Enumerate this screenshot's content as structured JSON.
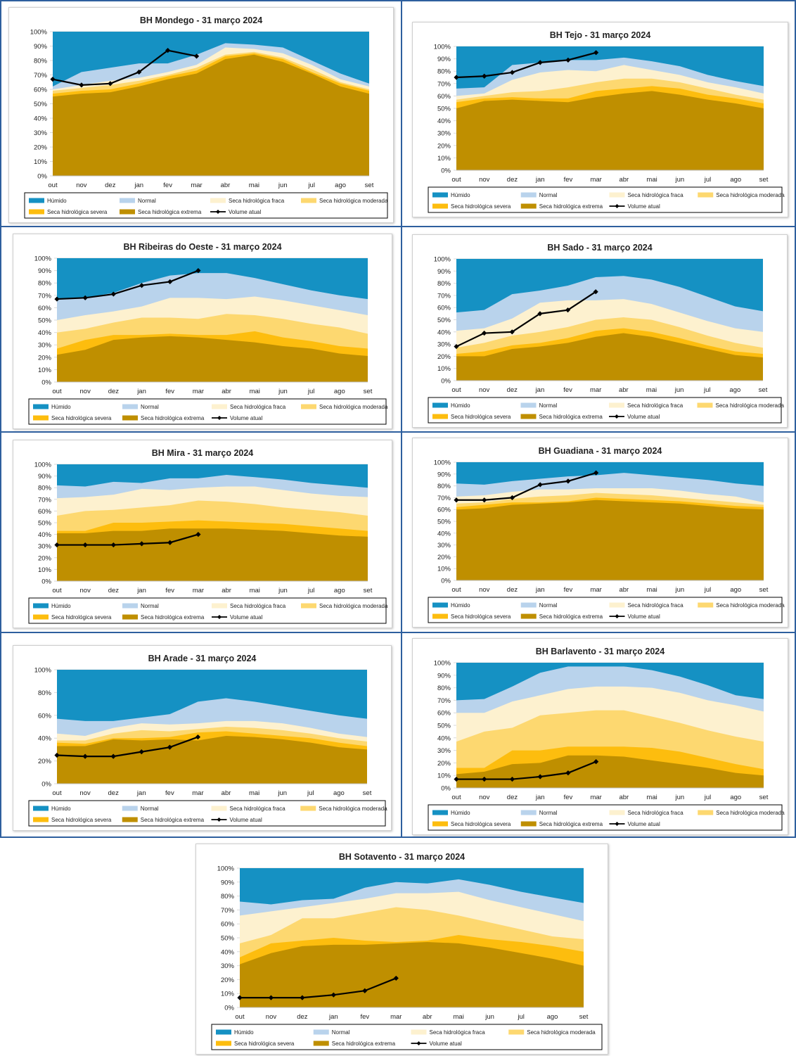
{
  "colors": {
    "humido": "#1591c3",
    "normal": "#b9d3ec",
    "fraca": "#fdf1cf",
    "moderada": "#fdd870",
    "severa": "#fdbd0e",
    "extrema": "#bf8f00",
    "volume": "#000000"
  },
  "legend": [
    "Húmido",
    "Normal",
    "Seca hidrológica fraca",
    "Seca hidrológica moderada",
    "Seca hidrológica severa",
    "Seca hidrológica extrema",
    "Volume atual"
  ],
  "chart_data": [
    {
      "type": "area",
      "title": "BH Mondego - 31 março 2024",
      "categories": [
        "out",
        "nov",
        "dez",
        "jan",
        "fev",
        "mar",
        "abr",
        "mai",
        "jun",
        "jul",
        "ago",
        "set"
      ],
      "yticks": [
        "0%",
        "10%",
        "20%",
        "30%",
        "40%",
        "50%",
        "60%",
        "70%",
        "80%",
        "90%",
        "100%"
      ],
      "ylim": [
        0,
        100
      ],
      "bands": {
        "extrema": [
          55,
          57,
          58,
          62,
          67,
          71,
          81,
          84,
          79,
          71,
          62,
          57
        ],
        "severa": [
          57,
          59,
          60,
          64,
          69,
          73,
          83,
          85,
          81,
          72,
          64,
          59
        ],
        "moderada": [
          59,
          61,
          63,
          66,
          70,
          75,
          84,
          86,
          82,
          74,
          65,
          60
        ],
        "fraca": [
          60,
          63,
          66,
          68,
          72,
          77,
          89,
          88,
          85,
          77,
          67,
          62
        ],
        "normal": [
          62,
          72,
          75,
          78,
          78,
          84,
          92,
          91,
          89,
          80,
          71,
          64
        ]
      },
      "volume": [
        67,
        63,
        64,
        72,
        87,
        83,
        null,
        null,
        null,
        null,
        null,
        null
      ]
    },
    {
      "type": "area",
      "title": "BH Tejo - 31 março 2024",
      "categories": [
        "out",
        "nov",
        "dez",
        "jan",
        "fev",
        "mar",
        "abr",
        "mai",
        "jun",
        "jul",
        "ago",
        "set"
      ],
      "yticks": [
        "0%",
        "10%",
        "20%",
        "30%",
        "40%",
        "50%",
        "60%",
        "70%",
        "80%",
        "90%",
        "100%"
      ],
      "ylim": [
        0,
        100
      ],
      "bands": {
        "extrema": [
          50,
          56,
          57,
          56,
          55,
          59,
          62,
          64,
          61,
          57,
          54,
          50
        ],
        "severa": [
          55,
          58,
          59,
          58,
          58,
          64,
          66,
          68,
          66,
          61,
          58,
          54
        ],
        "moderada": [
          57,
          60,
          63,
          64,
          67,
          71,
          74,
          74,
          71,
          66,
          61,
          57
        ],
        "fraca": [
          60,
          62,
          73,
          79,
          81,
          80,
          85,
          81,
          77,
          71,
          67,
          62
        ],
        "normal": [
          66,
          67,
          85,
          87,
          89,
          89,
          91,
          88,
          84,
          77,
          72,
          68
        ]
      },
      "volume": [
        75,
        76,
        79,
        87,
        89,
        95,
        null,
        null,
        null,
        null,
        null,
        null
      ]
    },
    {
      "type": "area",
      "title": "BH Ribeiras do Oeste - 31 março 2024",
      "categories": [
        "out",
        "nov",
        "dez",
        "jan",
        "fev",
        "mar",
        "abr",
        "mai",
        "jun",
        "jul",
        "ago",
        "set"
      ],
      "yticks": [
        "0%",
        "10%",
        "20%",
        "30%",
        "40%",
        "50%",
        "60%",
        "70%",
        "80%",
        "90%",
        "100%"
      ],
      "ylim": [
        0,
        100
      ],
      "bands": {
        "extrema": [
          22,
          26,
          34,
          36,
          37,
          36,
          34,
          32,
          29,
          27,
          23,
          21
        ],
        "severa": [
          27,
          34,
          38,
          38,
          39,
          38,
          38,
          41,
          36,
          33,
          29,
          27
        ],
        "moderada": [
          40,
          43,
          48,
          52,
          52,
          51,
          55,
          54,
          51,
          47,
          44,
          39
        ],
        "fraca": [
          50,
          54,
          57,
          61,
          68,
          68,
          67,
          69,
          66,
          62,
          58,
          54
        ],
        "normal": [
          67,
          68,
          72,
          80,
          86,
          88,
          88,
          84,
          79,
          74,
          70,
          67
        ]
      },
      "volume": [
        67,
        68,
        71,
        78,
        81,
        90,
        null,
        null,
        null,
        null,
        null,
        null
      ]
    },
    {
      "type": "area",
      "title": "BH Sado - 31 março 2024",
      "categories": [
        "out",
        "nov",
        "dez",
        "jan",
        "fev",
        "mar",
        "abr",
        "mai",
        "jun",
        "jul",
        "ago",
        "set"
      ],
      "yticks": [
        "0%",
        "10%",
        "20%",
        "30%",
        "40%",
        "50%",
        "60%",
        "70%",
        "80%",
        "90%",
        "100%"
      ],
      "ylim": [
        0,
        100
      ],
      "bands": {
        "extrema": [
          20,
          20,
          26,
          28,
          31,
          36,
          39,
          36,
          31,
          26,
          21,
          19
        ],
        "severa": [
          22,
          24,
          29,
          31,
          35,
          41,
          43,
          40,
          35,
          29,
          24,
          22
        ],
        "moderada": [
          27,
          31,
          37,
          40,
          44,
          50,
          52,
          50,
          44,
          37,
          31,
          27
        ],
        "fraca": [
          41,
          43,
          51,
          64,
          66,
          66,
          67,
          63,
          56,
          49,
          43,
          40
        ],
        "normal": [
          56,
          58,
          71,
          74,
          78,
          85,
          86,
          83,
          77,
          69,
          61,
          57
        ]
      },
      "volume": [
        28,
        39,
        40,
        55,
        58,
        73,
        null,
        null,
        null,
        null,
        null,
        null
      ]
    },
    {
      "type": "area",
      "title": "BH Mira - 31 março 2024",
      "categories": [
        "out",
        "nov",
        "dez",
        "jan",
        "fev",
        "mar",
        "abr",
        "mai",
        "jun",
        "jul",
        "ago",
        "set"
      ],
      "yticks": [
        "0%",
        "10%",
        "20%",
        "30%",
        "40%",
        "50%",
        "60%",
        "70%",
        "80%",
        "90%",
        "100%"
      ],
      "ylim": [
        0,
        100
      ],
      "bands": {
        "extrema": [
          41,
          41,
          43,
          43,
          45,
          45,
          45,
          44,
          43,
          41,
          39,
          38
        ],
        "severa": [
          43,
          43,
          50,
          50,
          51,
          52,
          51,
          50,
          49,
          47,
          45,
          43
        ],
        "moderada": [
          56,
          60,
          61,
          63,
          65,
          69,
          68,
          66,
          63,
          61,
          59,
          56
        ],
        "fraca": [
          71,
          72,
          74,
          79,
          78,
          80,
          81,
          81,
          78,
          75,
          73,
          72
        ],
        "normal": [
          82,
          81,
          85,
          84,
          88,
          88,
          91,
          89,
          87,
          84,
          82,
          80
        ]
      },
      "volume": [
        31,
        31,
        31,
        32,
        33,
        40,
        null,
        null,
        null,
        null,
        null,
        null
      ]
    },
    {
      "type": "area",
      "title": "BH Guadiana - 31 março 2024",
      "categories": [
        "out",
        "nov",
        "dez",
        "jan",
        "fev",
        "mar",
        "abr",
        "mai",
        "jun",
        "jul",
        "ago",
        "set"
      ],
      "yticks": [
        "0%",
        "10%",
        "20%",
        "30%",
        "40%",
        "50%",
        "60%",
        "70%",
        "80%",
        "90%",
        "100%"
      ],
      "ylim": [
        0,
        100
      ],
      "bands": {
        "extrema": [
          60,
          61,
          64,
          65,
          66,
          68,
          67,
          66,
          65,
          63,
          61,
          60
        ],
        "severa": [
          62,
          64,
          66,
          66,
          67,
          70,
          69,
          68,
          67,
          65,
          63,
          62
        ],
        "moderada": [
          65,
          66,
          69,
          71,
          72,
          74,
          73,
          72,
          70,
          68,
          66,
          64
        ],
        "fraca": [
          71,
          72,
          75,
          77,
          77,
          78,
          78,
          78,
          76,
          73,
          71,
          66
        ],
        "normal": [
          82,
          81,
          84,
          86,
          88,
          89,
          91,
          89,
          87,
          85,
          82,
          80
        ]
      },
      "volume": [
        68,
        68,
        70,
        81,
        84,
        91,
        null,
        null,
        null,
        null,
        null,
        null
      ]
    },
    {
      "type": "area",
      "title": "BH Arade - 31 março 2024",
      "categories": [
        "out",
        "nov",
        "dez",
        "jan",
        "fev",
        "mar",
        "abr",
        "mai",
        "jun",
        "jul",
        "ago",
        "set"
      ],
      "yticks": [
        "0%",
        "20%",
        "40%",
        "60%",
        "80%",
        "100%"
      ],
      "ylim": [
        0,
        100
      ],
      "bands": {
        "extrema": [
          33,
          33,
          39,
          38,
          39,
          38,
          42,
          41,
          39,
          36,
          32,
          30
        ],
        "severa": [
          36,
          35,
          40,
          40,
          41,
          45,
          46,
          44,
          42,
          40,
          36,
          33
        ],
        "moderada": [
          38,
          38,
          44,
          47,
          46,
          48,
          50,
          49,
          47,
          44,
          40,
          37
        ],
        "fraca": [
          44,
          42,
          49,
          53,
          52,
          53,
          55,
          55,
          53,
          49,
          44,
          41
        ],
        "normal": [
          57,
          55,
          55,
          58,
          61,
          72,
          75,
          72,
          68,
          64,
          60,
          57
        ]
      },
      "volume": [
        25,
        24,
        24,
        28,
        32,
        41,
        null,
        null,
        null,
        null,
        null,
        null
      ]
    },
    {
      "type": "area",
      "title": "BH Barlavento - 31 março 2024",
      "categories": [
        "out",
        "nov",
        "dez",
        "jan",
        "fev",
        "mar",
        "abr",
        "mai",
        "jun",
        "jul",
        "ago",
        "set"
      ],
      "yticks": [
        "0%",
        "10%",
        "20%",
        "30%",
        "40%",
        "50%",
        "60%",
        "70%",
        "80%",
        "90%",
        "100%"
      ],
      "ylim": [
        0,
        100
      ],
      "bands": {
        "extrema": [
          11,
          13,
          19,
          20,
          26,
          26,
          25,
          22,
          19,
          16,
          12,
          10
        ],
        "severa": [
          16,
          16,
          30,
          30,
          33,
          33,
          33,
          32,
          29,
          24,
          19,
          15
        ],
        "moderada": [
          37,
          45,
          48,
          58,
          60,
          62,
          62,
          57,
          52,
          46,
          41,
          37
        ],
        "fraca": [
          60,
          60,
          69,
          74,
          79,
          81,
          81,
          80,
          76,
          70,
          66,
          61
        ],
        "normal": [
          70,
          71,
          81,
          92,
          97,
          97,
          97,
          94,
          89,
          82,
          74,
          71
        ]
      },
      "volume": [
        7,
        7,
        7,
        9,
        12,
        21,
        null,
        null,
        null,
        null,
        null,
        null
      ]
    },
    {
      "type": "area",
      "title": "BH Sotavento - 31 março 2024",
      "categories": [
        "out",
        "nov",
        "dez",
        "jan",
        "fev",
        "mar",
        "abr",
        "mai",
        "jun",
        "jul",
        "ago",
        "set"
      ],
      "yticks": [
        "0%",
        "10%",
        "20%",
        "30%",
        "40%",
        "50%",
        "60%",
        "70%",
        "80%",
        "90%",
        "100%"
      ],
      "ylim": [
        0,
        100
      ],
      "bands": {
        "extrema": [
          31,
          39,
          44,
          45,
          45,
          46,
          47,
          46,
          43,
          39,
          35,
          30
        ],
        "severa": [
          36,
          46,
          48,
          50,
          48,
          47,
          48,
          52,
          49,
          47,
          44,
          40
        ],
        "moderada": [
          46,
          52,
          64,
          64,
          68,
          72,
          70,
          66,
          61,
          56,
          51,
          49
        ],
        "fraca": [
          66,
          69,
          72,
          75,
          78,
          82,
          82,
          83,
          77,
          72,
          67,
          62
        ],
        "normal": [
          76,
          74,
          77,
          78,
          86,
          90,
          89,
          92,
          88,
          83,
          79,
          75
        ]
      },
      "volume": [
        7,
        7,
        7,
        9,
        12,
        21,
        null,
        null,
        null,
        null,
        null,
        null
      ]
    }
  ]
}
